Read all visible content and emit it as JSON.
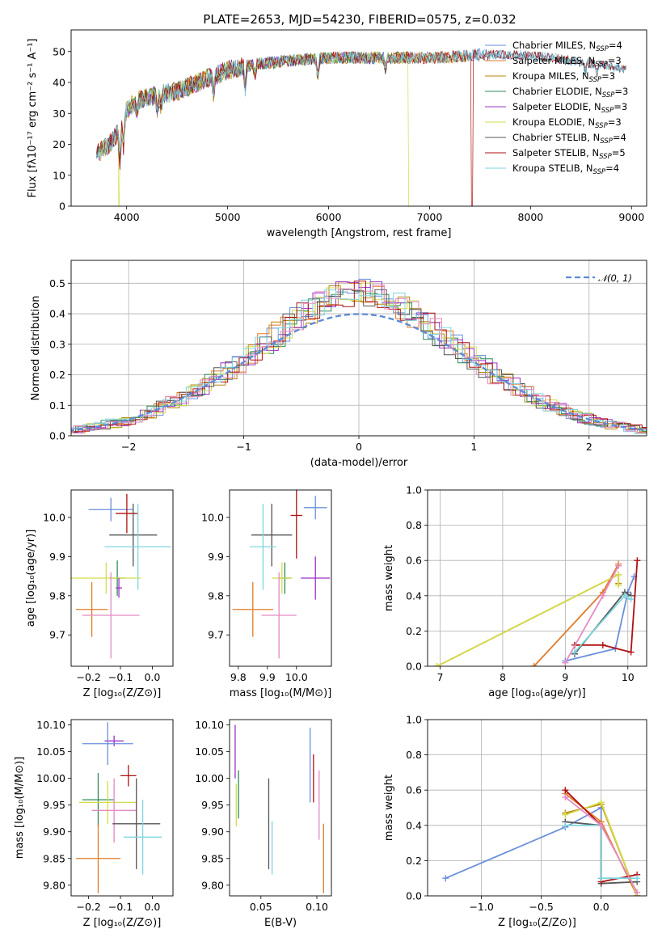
{
  "title": "PLATE=2653, MJD=54230, FIBERID=0575, z=0.032",
  "colors": {
    "Chabrier MILES": "#6a8fdc",
    "Salpeter MILES": "#e07b2a",
    "Kroupa MILES": "#b8860b",
    "Chabrier ELODIE": "#2e8b57",
    "Salpeter ELODIE": "#9b30c8",
    "Kroupa ELODIE": "#d4dc4a",
    "Chabrier STELIB": "#555555",
    "Salpeter STELIB": "#b01010",
    "Kroupa STELIB": "#7fd6e0",
    "pink": "#e58ac4",
    "gauss": "#5b8ad6"
  },
  "chart_data": [
    {
      "type": "line",
      "panel": "spectrum",
      "xlabel": "wavelength [Angstrom, rest frame]",
      "ylabel": "Flux [fλ10⁻¹⁷ erg cm⁻² s⁻¹ A⁻¹]",
      "xlim": [
        3450,
        9150
      ],
      "ylim": [
        0,
        57
      ],
      "xticks": [
        4000,
        5000,
        6000,
        7000,
        8000,
        9000
      ],
      "yticks": [
        0,
        10,
        20,
        30,
        40,
        50
      ],
      "legend_position": "top-right",
      "legend": [
        "Chabrier MILES, N_SSP=4",
        "Salpeter MILES, N_SSP=3",
        "Kroupa MILES, N_SSP=3",
        "Chabrier ELODIE, N_SSP=3",
        "Salpeter ELODIE, N_SSP=3",
        "Kroupa ELODIE, N_SSP=3",
        "Chabrier STELIB, N_SSP=4",
        "Salpeter STELIB, N_SSP=5",
        "Kroupa STELIB, N_SSP=4"
      ],
      "continuum_x": [
        3700,
        3800,
        3900,
        4000,
        4100,
        4300,
        4500,
        4700,
        5000,
        5300,
        5600,
        6000,
        6300,
        6500,
        6800,
        7100,
        7500,
        7800,
        8200,
        8600,
        9000
      ],
      "continuum_y": [
        17,
        19,
        23,
        31,
        34,
        36,
        37,
        40,
        44,
        46,
        47,
        48,
        48,
        48,
        48,
        48,
        49,
        49,
        48,
        46,
        44
      ],
      "dropouts": [
        {
          "series": "Kroupa ELODIE",
          "x": 3920
        },
        {
          "series": "Kroupa ELODIE",
          "x": 6795
        },
        {
          "series": "Salpeter STELIB",
          "x": 7420
        }
      ]
    },
    {
      "type": "histogram",
      "panel": "residuals",
      "xlabel": "(data-model)/error",
      "ylabel": "Normed distribution",
      "xlim": [
        -2.5,
        2.5
      ],
      "ylim": [
        0,
        0.575
      ],
      "xticks": [
        -2,
        -1,
        0,
        1,
        2
      ],
      "yticks": [
        0.0,
        0.1,
        0.2,
        0.3,
        0.4,
        0.5
      ],
      "grid": true,
      "legend": [
        "𝒩(0, 1)"
      ],
      "legend_position": "top-right",
      "bin_width": 0.1,
      "gaussian": {
        "mu": 0,
        "sigma": 1
      }
    },
    {
      "type": "errorbar",
      "panel": "metallicity-age",
      "xlabel": "Z [log₁₀(Z/Z⊙)]",
      "ylabel": "age  [log₁₀(age/yr)]",
      "xlim": [
        -0.255,
        0.065
      ],
      "ylim": [
        9.62,
        10.07
      ],
      "xticks": [
        -0.2,
        -0.1,
        0.0
      ],
      "yticks": [
        9.7,
        9.8,
        9.9,
        10.0
      ],
      "points": [
        {
          "s": "Chabrier MILES",
          "x": -0.13,
          "y": 10.02,
          "ex": 0.07,
          "ey": 0.03
        },
        {
          "s": "Salpeter STELIB",
          "x": -0.08,
          "y": 10.01,
          "ex": 0.035,
          "ey": 0.05
        },
        {
          "s": "Chabrier STELIB",
          "x": -0.06,
          "y": 9.955,
          "ex": 0.075,
          "ey": 0.08
        },
        {
          "s": "Kroupa STELIB",
          "x": -0.045,
          "y": 9.925,
          "ex": 0.105,
          "ey": 0.11
        },
        {
          "s": "Chabrier ELODIE",
          "x": -0.11,
          "y": 9.845,
          "ex": 0.025,
          "ey": 0.045
        },
        {
          "s": "Kroupa ELODIE",
          "x": -0.145,
          "y": 9.845,
          "ex": 0.11,
          "ey": 0.04
        },
        {
          "s": "Salpeter ELODIE",
          "x": -0.105,
          "y": 9.82,
          "ex": 0.01,
          "ey": 0.025
        },
        {
          "s": "Salpeter MILES",
          "x": -0.19,
          "y": 9.765,
          "ex": 0.05,
          "ey": 0.07
        },
        {
          "s": "pink",
          "x": -0.13,
          "y": 9.75,
          "ex": 0.09,
          "ey": 0.11
        }
      ]
    },
    {
      "type": "errorbar",
      "panel": "mass-age",
      "xlabel": "mass [log₁₀(M/M⊙)]",
      "ylabel": "",
      "xlim": [
        9.77,
        10.12
      ],
      "ylim": [
        9.62,
        10.07
      ],
      "xticks": [
        9.8,
        9.9,
        10.0
      ],
      "yticks": [
        9.7,
        9.8,
        9.9,
        10.0
      ],
      "points": [
        {
          "s": "Chabrier MILES",
          "x": 10.065,
          "y": 10.025,
          "ex": 0.04,
          "ey": 0.03
        },
        {
          "s": "Salpeter STELIB",
          "x": 10.0,
          "y": 10.005,
          "ex": 0.02,
          "ey": 0.11
        },
        {
          "s": "Chabrier STELIB",
          "x": 9.915,
          "y": 9.955,
          "ex": 0.07,
          "ey": 0.08
        },
        {
          "s": "Kroupa STELIB",
          "x": 9.885,
          "y": 9.925,
          "ex": 0.045,
          "ey": 0.11
        },
        {
          "s": "Chabrier ELODIE",
          "x": 9.96,
          "y": 9.845,
          "ex": 0.02,
          "ey": 0.04
        },
        {
          "s": "Kroupa ELODIE",
          "x": 9.95,
          "y": 9.845,
          "ex": 0.035,
          "ey": 0.04
        },
        {
          "s": "Salpeter ELODIE",
          "x": 10.065,
          "y": 9.845,
          "ex": 0.05,
          "ey": 0.055
        },
        {
          "s": "Salpeter MILES",
          "x": 9.85,
          "y": 9.765,
          "ex": 0.07,
          "ey": 0.07
        },
        {
          "s": "pink",
          "x": 9.94,
          "y": 9.75,
          "ex": 0.06,
          "ey": 0.11
        }
      ]
    },
    {
      "type": "line",
      "panel": "age-massweight",
      "xlabel": "age  [log₁₀(age/yr)]",
      "ylabel": "mass weight",
      "xlim": [
        6.8,
        10.3
      ],
      "ylim": [
        0,
        1.0
      ],
      "xticks": [
        7,
        8,
        9,
        10
      ],
      "yticks": [
        0.0,
        0.2,
        0.4,
        0.6,
        0.8,
        1.0
      ],
      "grid": true,
      "series": [
        {
          "s": "Chabrier MILES",
          "x": [
            9.0,
            9.8,
            10.0,
            10.1
          ],
          "y": [
            0.03,
            0.1,
            0.42,
            0.51
          ]
        },
        {
          "s": "Salpeter MILES",
          "x": [
            8.5,
            9.6,
            9.85
          ],
          "y": [
            0.0,
            0.42,
            0.58
          ]
        },
        {
          "s": "Kroupa MILES",
          "x": [
            6.95,
            9.85,
            9.85
          ],
          "y": [
            0.0,
            0.52,
            0.47
          ]
        },
        {
          "s": "Kroupa ELODIE",
          "x": [
            6.95,
            9.85,
            9.85
          ],
          "y": [
            0.0,
            0.52,
            0.46
          ]
        },
        {
          "s": "Chabrier STELIB",
          "x": [
            9.15,
            9.95,
            10.05
          ],
          "y": [
            0.07,
            0.42,
            0.4
          ]
        },
        {
          "s": "Salpeter STELIB",
          "x": [
            9.15,
            9.6,
            10.05,
            10.15
          ],
          "y": [
            0.12,
            0.12,
            0.08,
            0.6
          ]
        },
        {
          "s": "Kroupa STELIB",
          "x": [
            9.15,
            9.95,
            10.05
          ],
          "y": [
            0.08,
            0.4,
            0.38
          ]
        },
        {
          "s": "pink",
          "x": [
            9.0,
            9.6,
            9.85
          ],
          "y": [
            0.02,
            0.4,
            0.57
          ]
        }
      ]
    },
    {
      "type": "errorbar",
      "panel": "metallicity-mass",
      "xlabel": "Z [log₁₀(Z/Z⊙)]",
      "ylabel": "mass [log₁₀(M/M⊙)]",
      "xlim": [
        -0.255,
        0.065
      ],
      "ylim": [
        9.78,
        10.11
      ],
      "xticks": [
        -0.2,
        -0.1,
        0.0
      ],
      "yticks": [
        9.8,
        9.85,
        9.9,
        9.95,
        10.0,
        10.05,
        10.1
      ],
      "points": [
        {
          "s": "Salpeter ELODIE",
          "x": -0.12,
          "y": 10.07,
          "ex": 0.03,
          "ey": 0.01
        },
        {
          "s": "Chabrier MILES",
          "x": -0.14,
          "y": 10.065,
          "ex": 0.08,
          "ey": 0.04
        },
        {
          "s": "Salpeter STELIB",
          "x": -0.075,
          "y": 10.005,
          "ex": 0.025,
          "ey": 0.02
        },
        {
          "s": "Chabrier ELODIE",
          "x": -0.17,
          "y": 9.96,
          "ex": 0.05,
          "ey": 0.05
        },
        {
          "s": "Kroupa ELODIE",
          "x": -0.14,
          "y": 9.955,
          "ex": 0.09,
          "ey": 0.04
        },
        {
          "s": "pink",
          "x": -0.12,
          "y": 9.94,
          "ex": 0.07,
          "ey": 0.06
        },
        {
          "s": "Chabrier STELIB",
          "x": -0.05,
          "y": 9.915,
          "ex": 0.075,
          "ey": 0.085
        },
        {
          "s": "Kroupa STELIB",
          "x": -0.03,
          "y": 9.89,
          "ex": 0.06,
          "ey": 0.07
        },
        {
          "s": "Salpeter MILES",
          "x": -0.17,
          "y": 9.85,
          "ex": 0.07,
          "ey": 0.065
        }
      ]
    },
    {
      "type": "errorbar",
      "panel": "ebv-mass",
      "xlabel": "E(B-V)",
      "ylabel": "",
      "xlim": [
        0.022,
        0.113
      ],
      "ylim": [
        9.78,
        10.11
      ],
      "xticks": [
        0.05,
        0.1
      ],
      "yticks": [
        9.8,
        9.85,
        9.9,
        9.95,
        10.0,
        10.05,
        10.1
      ],
      "points": [
        {
          "s": "Salpeter ELODIE",
          "x": 0.027,
          "y": 10.05,
          "ey": 0.05
        },
        {
          "s": "Chabrier ELODIE",
          "x": 0.03,
          "y": 9.97,
          "ey": 0.045
        },
        {
          "s": "Kroupa ELODIE",
          "x": 0.028,
          "y": 9.95,
          "ey": 0.04
        },
        {
          "s": "Chabrier STELIB",
          "x": 0.057,
          "y": 9.915,
          "ey": 0.085
        },
        {
          "s": "Kroupa STELIB",
          "x": 0.06,
          "y": 9.87,
          "ey": 0.05
        },
        {
          "s": "Chabrier MILES",
          "x": 0.094,
          "y": 10.025,
          "ey": 0.07
        },
        {
          "s": "Salpeter STELIB",
          "x": 0.097,
          "y": 10.0,
          "ey": 0.045
        },
        {
          "s": "pink",
          "x": 0.102,
          "y": 9.95,
          "ey": 0.065
        },
        {
          "s": "Salpeter MILES",
          "x": 0.106,
          "y": 9.85,
          "ey": 0.065
        }
      ]
    },
    {
      "type": "line",
      "panel": "metallicity-massweight",
      "xlabel": "Z [log₁₀(Z/Z⊙)]",
      "ylabel": "mass weight",
      "xlim": [
        -1.45,
        0.38
      ],
      "ylim": [
        0,
        1.0
      ],
      "xticks": [
        -1.0,
        -0.5,
        0.0
      ],
      "yticks": [
        0.0,
        0.2,
        0.4,
        0.6,
        0.8,
        1.0
      ],
      "grid": true,
      "series": [
        {
          "s": "Chabrier MILES",
          "x": [
            -1.3,
            -0.3,
            0.0,
            0.0
          ],
          "y": [
            0.1,
            0.39,
            0.5,
            0.1
          ]
        },
        {
          "s": "Salpeter MILES",
          "x": [
            -0.3,
            0.0,
            0.3
          ],
          "y": [
            0.58,
            0.42,
            0.0
          ]
        },
        {
          "s": "Kroupa MILES",
          "x": [
            -0.3,
            0.0,
            0.3
          ],
          "y": [
            0.47,
            0.52,
            0.0
          ]
        },
        {
          "s": "Kroupa ELODIE",
          "x": [
            -0.3,
            0.0,
            0.3
          ],
          "y": [
            0.46,
            0.53,
            0.0
          ]
        },
        {
          "s": "Chabrier STELIB",
          "x": [
            -0.3,
            0.0,
            0.0,
            0.3
          ],
          "y": [
            0.42,
            0.4,
            0.07,
            0.08
          ]
        },
        {
          "s": "Salpeter STELIB",
          "x": [
            -0.3,
            0.0,
            0.0,
            0.3
          ],
          "y": [
            0.6,
            0.4,
            0.08,
            0.12
          ]
        },
        {
          "s": "Kroupa STELIB",
          "x": [
            -0.3,
            0.0,
            0.0,
            0.3
          ],
          "y": [
            0.4,
            0.4,
            0.1,
            0.1
          ]
        },
        {
          "s": "pink",
          "x": [
            -0.3,
            0.0,
            0.3
          ],
          "y": [
            0.56,
            0.4,
            0.02
          ]
        }
      ]
    }
  ]
}
